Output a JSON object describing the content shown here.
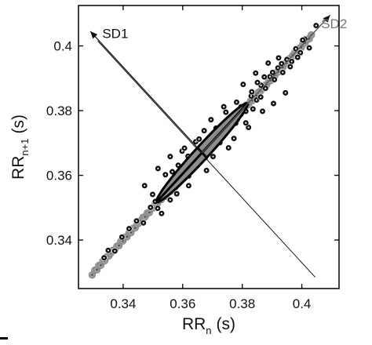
{
  "chart_data": {
    "type": "scatter",
    "title": "",
    "xlabel": {
      "main": "RR",
      "sub": "n",
      "unit": "(s)"
    },
    "ylabel": {
      "main": "RR",
      "sub": "n+1",
      "unit": "(s)"
    },
    "xlim": [
      0.325,
      0.4125
    ],
    "ylim": [
      0.325,
      0.4125
    ],
    "xticks": [
      0.34,
      0.36,
      0.38,
      0.4
    ],
    "xtick_labels": [
      "0.34",
      "0.36",
      "0.38",
      "0.4"
    ],
    "yticks": [
      0.34,
      0.36,
      0.38,
      0.4
    ],
    "ytick_labels": [
      "0.34",
      "0.36",
      "0.38",
      "0.4"
    ],
    "grid": false,
    "ellipse": {
      "center": [
        0.3665,
        0.367
      ],
      "sd1": 0.0022,
      "sd2": 0.0215
    },
    "annotations": [
      {
        "text": "SD1",
        "from": [
          0.3665,
          0.367
        ],
        "to": [
          0.329,
          0.4045
        ],
        "label_at": [
          0.333,
          0.4025
        ],
        "color": "#111111"
      },
      {
        "text": "SD2",
        "from": [
          0.3665,
          0.367
        ],
        "to": [
          0.4095,
          0.4095
        ],
        "label_at": [
          0.4065,
          0.4055
        ],
        "color": "#777777"
      }
    ],
    "sd1_axis_line": {
      "from": [
        0.3315,
        0.4015
      ],
      "to": [
        0.4045,
        0.3285
      ]
    },
    "series": [
      {
        "style": "gray",
        "x": [
          0.3296,
          0.3305,
          0.3312,
          0.3318,
          0.3325,
          0.3332,
          0.3338,
          0.3345,
          0.3352,
          0.3358,
          0.3365,
          0.3372,
          0.3379,
          0.3386,
          0.3392,
          0.3399,
          0.3406,
          0.3413,
          0.342,
          0.3426,
          0.3433,
          0.344,
          0.3447,
          0.3454,
          0.346,
          0.3467,
          0.3474,
          0.3481,
          0.3488,
          0.3494,
          0.3501,
          0.3508,
          0.3515,
          0.3522,
          0.3528,
          0.3535,
          0.3542,
          0.3549,
          0.3556,
          0.3562,
          0.3569,
          0.3576,
          0.3583,
          0.359,
          0.3596,
          0.3603,
          0.361,
          0.3617,
          0.3624,
          0.363,
          0.3637,
          0.3644,
          0.3651,
          0.3658,
          0.3664,
          0.3671,
          0.3678,
          0.3685,
          0.3692,
          0.3698,
          0.3705,
          0.3712,
          0.3719,
          0.3726,
          0.3732,
          0.3739,
          0.3746,
          0.3753,
          0.376,
          0.3766,
          0.3773,
          0.378,
          0.3787,
          0.3794,
          0.38,
          0.3807,
          0.3814,
          0.3821,
          0.3828,
          0.3834,
          0.3841,
          0.3848,
          0.3855,
          0.3862,
          0.3868,
          0.3875,
          0.3882,
          0.3889,
          0.3896,
          0.3902,
          0.3909,
          0.3916,
          0.3923,
          0.393,
          0.3936,
          0.3943,
          0.395,
          0.3957,
          0.3964,
          0.397,
          0.3977,
          0.3984,
          0.3991,
          0.3998,
          0.4004,
          0.4011,
          0.4018,
          0.4025,
          0.4032,
          0.3589,
          0.3611,
          0.3634,
          0.3656,
          0.3678,
          0.37,
          0.3722,
          0.3745,
          0.3767,
          0.3789,
          0.3603,
          0.3625,
          0.3647,
          0.3669,
          0.3692,
          0.3714,
          0.3736,
          0.3758,
          0.378,
          0.3575,
          0.3558,
          0.3544
        ],
        "y": [
          0.3292,
          0.3307,
          0.3308,
          0.3321,
          0.3322,
          0.3335,
          0.3336,
          0.3348,
          0.3351,
          0.3359,
          0.3368,
          0.337,
          0.3381,
          0.3383,
          0.3396,
          0.3397,
          0.3409,
          0.341,
          0.3422,
          0.3423,
          0.3436,
          0.3437,
          0.3449,
          0.3453,
          0.3461,
          0.347,
          0.3472,
          0.3483,
          0.3485,
          0.3498,
          0.3499,
          0.3511,
          0.3512,
          0.3524,
          0.3525,
          0.3538,
          0.3539,
          0.3551,
          0.3555,
          0.3563,
          0.3572,
          0.3574,
          0.3585,
          0.3587,
          0.36,
          0.3601,
          0.3613,
          0.3614,
          0.3626,
          0.3627,
          0.364,
          0.3641,
          0.3653,
          0.3657,
          0.3665,
          0.3674,
          0.3676,
          0.3687,
          0.3689,
          0.3702,
          0.3703,
          0.3715,
          0.3716,
          0.3728,
          0.3729,
          0.3742,
          0.3743,
          0.3755,
          0.3759,
          0.3767,
          0.3776,
          0.3778,
          0.3789,
          0.3791,
          0.3804,
          0.3805,
          0.3817,
          0.3818,
          0.383,
          0.3831,
          0.3844,
          0.3845,
          0.3857,
          0.3861,
          0.3869,
          0.3878,
          0.388,
          0.3891,
          0.3893,
          0.3906,
          0.3907,
          0.3919,
          0.392,
          0.3932,
          0.3933,
          0.3946,
          0.3947,
          0.3959,
          0.3963,
          0.3971,
          0.398,
          0.3982,
          0.3993,
          0.3995,
          0.4008,
          0.4009,
          0.4021,
          0.4022,
          0.4034,
          0.3598,
          0.362,
          0.3642,
          0.3664,
          0.3687,
          0.3709,
          0.3731,
          0.3753,
          0.3775,
          0.3797,
          0.3594,
          0.3616,
          0.3638,
          0.3661,
          0.3683,
          0.3705,
          0.3727,
          0.3749,
          0.3771,
          0.3565,
          0.355,
          0.3535
        ]
      },
      {
        "style": "dot",
        "x": [
          0.3336,
          0.335,
          0.3372,
          0.3396,
          0.342,
          0.3445,
          0.3468,
          0.3492,
          0.3516,
          0.354,
          0.3558,
          0.3565,
          0.3584,
          0.36,
          0.362,
          0.3637,
          0.366,
          0.3676,
          0.3698,
          0.3718,
          0.3737,
          0.3756,
          0.3778,
          0.3796,
          0.3812,
          0.383,
          0.3848,
          0.3863,
          0.3878,
          0.3893,
          0.3908,
          0.392,
          0.3936,
          0.395,
          0.3966,
          0.398,
          0.3995,
          0.401,
          0.4025,
          0.4048,
          0.3472,
          0.3499,
          0.3517,
          0.3558,
          0.358,
          0.3598,
          0.362,
          0.3644,
          0.368,
          0.3712,
          0.3738,
          0.3754,
          0.3772,
          0.3803,
          0.3821,
          0.3845,
          0.3868,
          0.3887,
          0.3905,
          0.3922,
          0.3945,
          0.3832,
          0.3851,
          0.3874,
          0.3902,
          0.3932,
          0.3961,
          0.3986,
          0.4003,
          0.3542,
          0.3529,
          0.3508,
          0.3618,
          0.3655,
          0.3702,
          0.3745,
          0.3672,
          0.3695,
          0.3725,
          0.3585,
          0.3606,
          0.3812,
          0.3836,
          0.3862,
          0.3781
        ],
        "y": [
          0.3345,
          0.3368,
          0.3366,
          0.3409,
          0.3435,
          0.3459,
          0.3453,
          0.3501,
          0.3498,
          0.3552,
          0.3524,
          0.3611,
          0.3574,
          0.3615,
          0.3598,
          0.3641,
          0.3686,
          0.3655,
          0.3712,
          0.3704,
          0.3744,
          0.3771,
          0.3761,
          0.3812,
          0.3798,
          0.3845,
          0.3833,
          0.3878,
          0.3869,
          0.3905,
          0.3896,
          0.3932,
          0.3918,
          0.3958,
          0.3952,
          0.3991,
          0.3979,
          0.4021,
          0.3994,
          0.4063,
          0.3568,
          0.3541,
          0.3621,
          0.3658,
          0.3543,
          0.3675,
          0.3568,
          0.3704,
          0.3615,
          0.3746,
          0.3812,
          0.3685,
          0.3714,
          0.3881,
          0.3748,
          0.3916,
          0.3798,
          0.3947,
          0.3822,
          0.3963,
          0.3855,
          0.3858,
          0.3887,
          0.3904,
          0.3918,
          0.3945,
          0.3936,
          0.3965,
          0.4018,
          0.3602,
          0.3482,
          0.3519,
          0.3659,
          0.3712,
          0.3658,
          0.3795,
          0.3738,
          0.3772,
          0.3701,
          0.3631,
          0.3684,
          0.3762,
          0.3805,
          0.3842,
          0.3826
        ]
      }
    ]
  }
}
